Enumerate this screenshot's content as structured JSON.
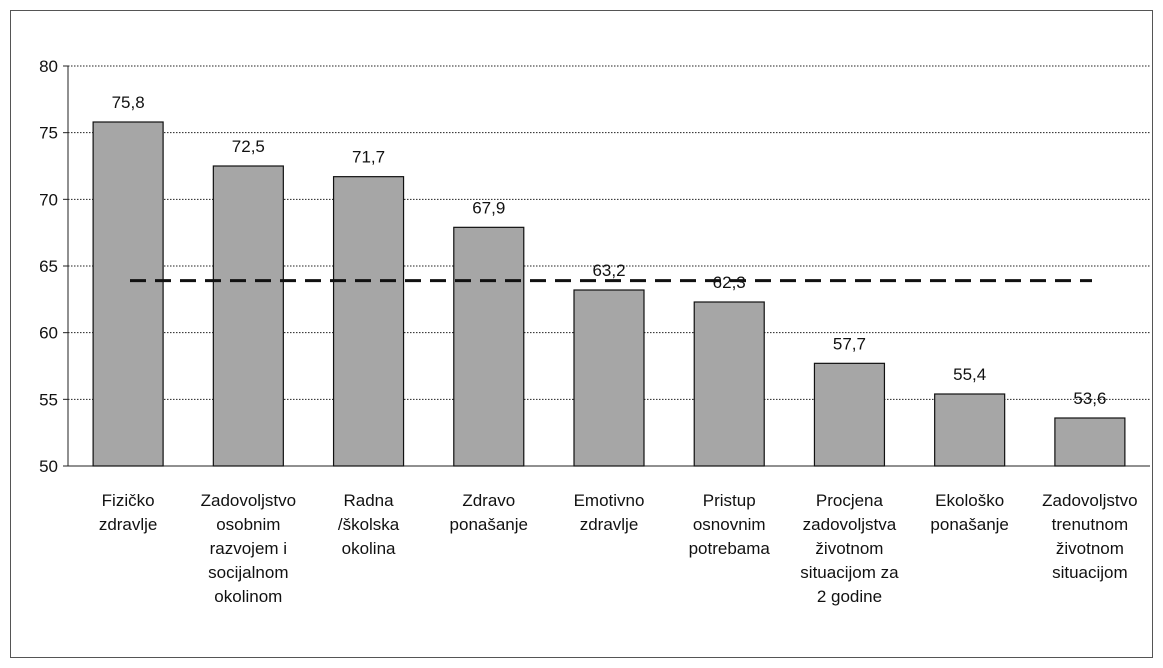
{
  "chart_data": {
    "type": "bar",
    "categories": [
      [
        "Fizičko",
        "zdravlje"
      ],
      [
        "Zadovoljstvo",
        "osobnim",
        "razvojem i",
        "socijalnom",
        "okolinom"
      ],
      [
        "Radna",
        "/školska",
        "okolina"
      ],
      [
        "Zdravo",
        "ponašanje"
      ],
      [
        "Emotivno",
        "zdravlje"
      ],
      [
        "Pristup",
        "osnovnim",
        "potrebama"
      ],
      [
        "Procjena",
        "zadovoljstva",
        "životnom",
        "situacijom za",
        "2 godine"
      ],
      [
        "Ekološko",
        "ponašanje"
      ],
      [
        "Zadovoljstvo",
        "trenutnom",
        "životnom",
        "situacijom"
      ]
    ],
    "values": [
      75.8,
      72.5,
      71.7,
      67.9,
      63.2,
      62.3,
      57.7,
      55.4,
      53.6
    ],
    "value_labels": [
      "75,8",
      "72,5",
      "71,7",
      "67,9",
      "63,2",
      "62,3",
      "57,7",
      "55,4",
      "53,6"
    ],
    "color": "#a6a6a6",
    "ylim": [
      50,
      80
    ],
    "yticks": [
      50,
      55,
      60,
      65,
      70,
      75,
      80
    ],
    "grid": true,
    "reference_line": {
      "value": 63.9,
      "style": "dashed"
    }
  }
}
